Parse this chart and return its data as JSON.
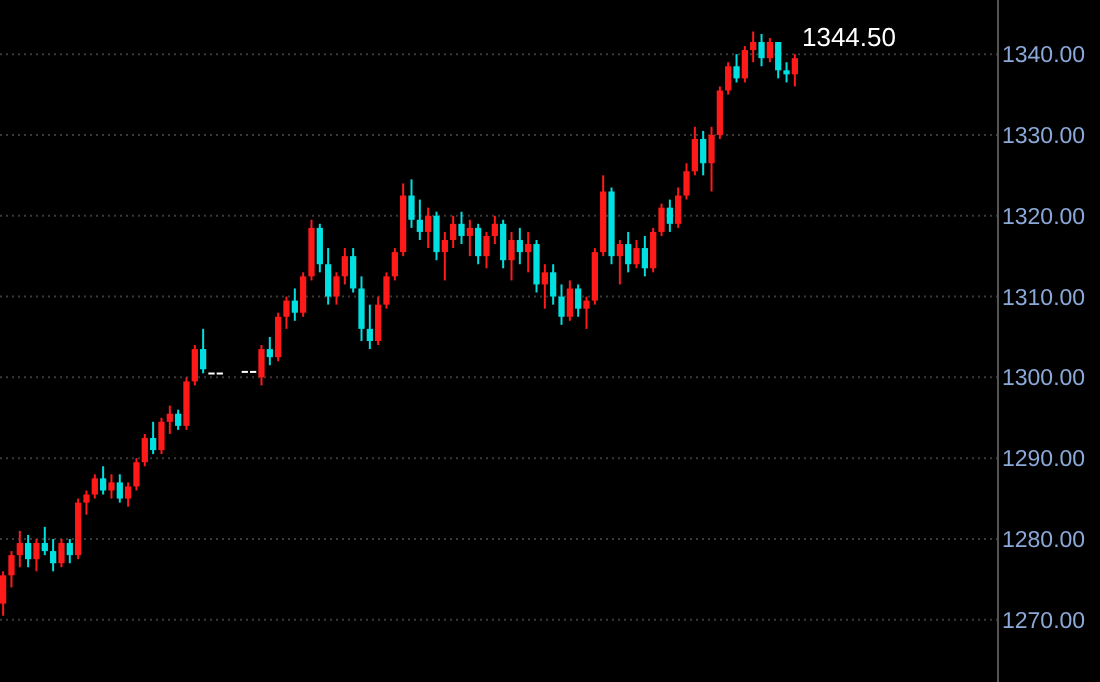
{
  "chart_data": {
    "type": "candlestick",
    "categories": [
      null,
      null,
      null,
      null,
      null,
      null,
      null,
      null,
      null,
      null,
      null,
      null,
      null,
      null,
      null,
      null,
      null,
      null,
      null,
      null,
      null,
      null,
      null,
      null,
      null,
      null,
      null,
      null,
      null,
      null,
      null,
      null,
      null,
      null,
      null,
      null,
      null,
      null,
      null,
      null,
      null,
      null,
      null,
      null,
      null,
      null,
      null,
      null,
      null,
      null,
      null,
      null,
      null,
      null,
      null,
      null,
      null,
      null,
      null,
      null,
      null,
      null,
      null,
      null,
      null,
      null,
      null,
      null,
      null,
      null,
      null,
      null,
      null,
      null,
      null,
      null,
      null,
      null,
      null,
      null,
      null,
      null,
      null,
      null,
      null,
      null,
      null,
      null,
      null,
      null,
      null,
      null,
      null,
      null,
      null,
      null,
      null,
      null,
      null,
      null,
      null,
      null,
      null,
      null,
      null,
      null,
      null,
      null,
      null,
      null,
      null,
      null,
      null,
      null,
      null,
      null,
      null,
      null,
      null,
      null
    ],
    "ohlc": [
      [
        1272,
        1276,
        1270.5,
        1275.5
      ],
      [
        1275.5,
        1278.5,
        1274,
        1278
      ],
      [
        1278,
        1281,
        1276.5,
        1279.5
      ],
      [
        1279.5,
        1280.5,
        1276.5,
        1277.5
      ],
      [
        1277.5,
        1280,
        1276,
        1279.5
      ],
      [
        1279.5,
        1281.5,
        1278,
        1278.5
      ],
      [
        1278.5,
        1280,
        1276,
        1277
      ],
      [
        1277,
        1280,
        1276.5,
        1279.5
      ],
      [
        1279.5,
        1280,
        1277,
        1278
      ],
      [
        1278,
        1285,
        1277.5,
        1284.5
      ],
      [
        1284.5,
        1286,
        1283,
        1285.5
      ],
      [
        1285.5,
        1288,
        1285,
        1287.5
      ],
      [
        1287.5,
        1289,
        1285.5,
        1286
      ],
      [
        1286,
        1288,
        1285,
        1287
      ],
      [
        1287,
        1288,
        1284.5,
        1285
      ],
      [
        1285,
        1287,
        1284,
        1286.5
      ],
      [
        1286.5,
        1290,
        1286,
        1289.5
      ],
      [
        1289.5,
        1293,
        1289,
        1292.5
      ],
      [
        1292.5,
        1294.5,
        1290.5,
        1291
      ],
      [
        1291,
        1295,
        1290.5,
        1294.5
      ],
      [
        1294.5,
        1296.5,
        1293,
        1295.5
      ],
      [
        1295.5,
        1296,
        1293.5,
        1294
      ],
      [
        1294,
        1300,
        1293.5,
        1299.5
      ],
      [
        1299.5,
        1304,
        1299,
        1303.5
      ],
      [
        1303.5,
        1306,
        1300.5,
        1301
      ],
      [
        1300.6,
        1300.6,
        1300.6,
        1300.6
      ],
      [
        1300.6,
        1300.6,
        1300.6,
        1300.6
      ],
      null,
      null,
      [
        1300.8,
        1300.8,
        1300.8,
        1300.8
      ],
      [
        1300.8,
        1300.8,
        1300.8,
        1300.8
      ],
      [
        1300,
        1304,
        1299,
        1303.5
      ],
      [
        1303.5,
        1305,
        1301.5,
        1302.5
      ],
      [
        1302.5,
        1308,
        1302,
        1307.5
      ],
      [
        1307.5,
        1310,
        1306,
        1309.5
      ],
      [
        1309.5,
        1311,
        1307,
        1308
      ],
      [
        1308,
        1313,
        1307.5,
        1312.5
      ],
      [
        1312.5,
        1319.5,
        1312,
        1318.5
      ],
      [
        1318.5,
        1319,
        1313,
        1314
      ],
      [
        1314,
        1316,
        1309,
        1310
      ],
      [
        1310,
        1313,
        1309,
        1312.5
      ],
      [
        1312.5,
        1316,
        1311.5,
        1315
      ],
      [
        1315,
        1316,
        1310.5,
        1311
      ],
      [
        1311,
        1312.5,
        1304.5,
        1306
      ],
      [
        1306,
        1309,
        1303.5,
        1304.5
      ],
      [
        1304.5,
        1310,
        1304,
        1309
      ],
      [
        1309,
        1313,
        1308.5,
        1312.5
      ],
      [
        1312.5,
        1316,
        1312,
        1315.5
      ],
      [
        1315.5,
        1324,
        1315,
        1322.5
      ],
      [
        1322.5,
        1324.5,
        1318.5,
        1319.5
      ],
      [
        1319.5,
        1322,
        1317,
        1318
      ],
      [
        1318,
        1321,
        1316,
        1320
      ],
      [
        1320,
        1320.5,
        1314.5,
        1315.5
      ],
      [
        1315.5,
        1318,
        1312,
        1317
      ],
      [
        1317,
        1320,
        1316,
        1319
      ],
      [
        1319,
        1320.5,
        1316.5,
        1317.5
      ],
      [
        1317.5,
        1319.5,
        1315,
        1318.5
      ],
      [
        1318.5,
        1319,
        1314,
        1315
      ],
      [
        1315,
        1318,
        1313.5,
        1317.5
      ],
      [
        1317.5,
        1320,
        1316.5,
        1319
      ],
      [
        1319,
        1319.5,
        1313.5,
        1314.5
      ],
      [
        1314.5,
        1318,
        1312,
        1317
      ],
      [
        1317,
        1318.5,
        1314,
        1315.5
      ],
      [
        1315.5,
        1318,
        1313,
        1316.5
      ],
      [
        1316.5,
        1317,
        1310.5,
        1311.5
      ],
      [
        1311.5,
        1314,
        1308.5,
        1313
      ],
      [
        1313,
        1314,
        1309,
        1310
      ],
      [
        1310,
        1311.5,
        1306.5,
        1307.5
      ],
      [
        1307.5,
        1312,
        1307,
        1311
      ],
      [
        1311,
        1311.5,
        1307.5,
        1308.5
      ],
      [
        1308.5,
        1310,
        1306,
        1309.5
      ],
      [
        1309.5,
        1316,
        1309,
        1315.5
      ],
      [
        1315.5,
        1325,
        1315,
        1323
      ],
      [
        1323,
        1323.5,
        1314,
        1315
      ],
      [
        1315,
        1317,
        1311.5,
        1316.5
      ],
      [
        1316.5,
        1318,
        1313,
        1314
      ],
      [
        1314,
        1317,
        1313.5,
        1316
      ],
      [
        1316,
        1317.5,
        1312.5,
        1313.5
      ],
      [
        1313.5,
        1318.5,
        1313,
        1318
      ],
      [
        1318,
        1321.5,
        1317.5,
        1321
      ],
      [
        1321,
        1322,
        1318,
        1319
      ],
      [
        1319,
        1323.5,
        1318.5,
        1322.5
      ],
      [
        1322.5,
        1326.5,
        1322,
        1325.5
      ],
      [
        1325.5,
        1331,
        1325,
        1329.5
      ],
      [
        1329.5,
        1330.5,
        1325,
        1326.5
      ],
      [
        1326.5,
        1331,
        1323,
        1330
      ],
      [
        1330,
        1336,
        1329.5,
        1335.5
      ],
      [
        1335.5,
        1339,
        1335,
        1338.5
      ],
      [
        1338.5,
        1340,
        1336.5,
        1337
      ],
      [
        1337,
        1341,
        1336.5,
        1340.5
      ],
      [
        1340.5,
        1342.8,
        1339,
        1341.5
      ],
      [
        1341.5,
        1342.5,
        1338.5,
        1339.5
      ],
      [
        1339.5,
        1342,
        1339,
        1341.5
      ],
      [
        1341.5,
        1341.5,
        1337,
        1338
      ],
      [
        1338,
        1339,
        1336.5,
        1337.5
      ],
      [
        1337.5,
        1340,
        1336,
        1339.5
      ],
      null,
      null,
      null,
      null,
      null,
      null,
      null,
      null,
      null,
      null,
      null,
      null,
      null,
      null,
      null,
      null,
      null,
      null,
      null,
      null,
      null,
      null,
      null,
      null
    ],
    "colors": [
      "#ff1a1a",
      "#ff1a1a",
      "#ff1a1a",
      "#00e0e0",
      "#ff1a1a",
      "#00e0e0",
      "#00e0e0",
      "#ff1a1a",
      "#00e0e0",
      "#ff1a1a",
      "#ff1a1a",
      "#ff1a1a",
      "#00e0e0",
      "#ff1a1a",
      "#00e0e0",
      "#ff1a1a",
      "#ff1a1a",
      "#ff1a1a",
      "#00e0e0",
      "#ff1a1a",
      "#ff1a1a",
      "#00e0e0",
      "#ff1a1a",
      "#ff1a1a",
      "#00e0e0",
      "#ffffff",
      "#ffffff",
      null,
      null,
      "#ffffff",
      "#ffffff",
      "#ff1a1a",
      "#00e0e0",
      "#ff1a1a",
      "#ff1a1a",
      "#00e0e0",
      "#ff1a1a",
      "#ff1a1a",
      "#00e0e0",
      "#00e0e0",
      "#ff1a1a",
      "#ff1a1a",
      "#00e0e0",
      "#00e0e0",
      "#00e0e0",
      "#ff1a1a",
      "#ff1a1a",
      "#ff1a1a",
      "#ff1a1a",
      "#00e0e0",
      "#00e0e0",
      "#ff1a1a",
      "#00e0e0",
      "#ff1a1a",
      "#ff1a1a",
      "#00e0e0",
      "#ff1a1a",
      "#00e0e0",
      "#ff1a1a",
      "#ff1a1a",
      "#00e0e0",
      "#ff1a1a",
      "#00e0e0",
      "#ff1a1a",
      "#00e0e0",
      "#ff1a1a",
      "#00e0e0",
      "#00e0e0",
      "#ff1a1a",
      "#00e0e0",
      "#ff1a1a",
      "#ff1a1a",
      "#ff1a1a",
      "#00e0e0",
      "#ff1a1a",
      "#00e0e0",
      "#ff1a1a",
      "#00e0e0",
      "#ff1a1a",
      "#ff1a1a",
      "#00e0e0",
      "#ff1a1a",
      "#ff1a1a",
      "#ff1a1a",
      "#00e0e0",
      "#ff1a1a",
      "#ff1a1a",
      "#ff1a1a",
      "#00e0e0",
      "#ff1a1a",
      "#ff1a1a",
      "#00e0e0",
      "#ff1a1a",
      "#00e0e0",
      "#00e0e0",
      "#ff1a1a",
      null,
      null,
      null,
      null,
      null,
      null,
      null,
      null,
      null,
      null,
      null,
      null,
      null,
      null,
      null,
      null,
      null,
      null,
      null,
      null,
      null,
      null,
      null,
      null
    ],
    "ylim": [
      1262.3,
      1346.7
    ],
    "yticks": [
      {
        "value": 1270,
        "label": "1270.00"
      },
      {
        "value": 1280,
        "label": "1280.00"
      },
      {
        "value": 1290,
        "label": "1290.00"
      },
      {
        "value": 1300,
        "label": "1300.00"
      },
      {
        "value": 1310,
        "label": "1310.00"
      },
      {
        "value": 1320,
        "label": "1320.00"
      },
      {
        "value": 1330,
        "label": "1330.00"
      },
      {
        "value": 1340,
        "label": "1340.00"
      }
    ],
    "grid": "y",
    "tick_labels": "y",
    "annotations": [
      "1344.50"
    ]
  }
}
